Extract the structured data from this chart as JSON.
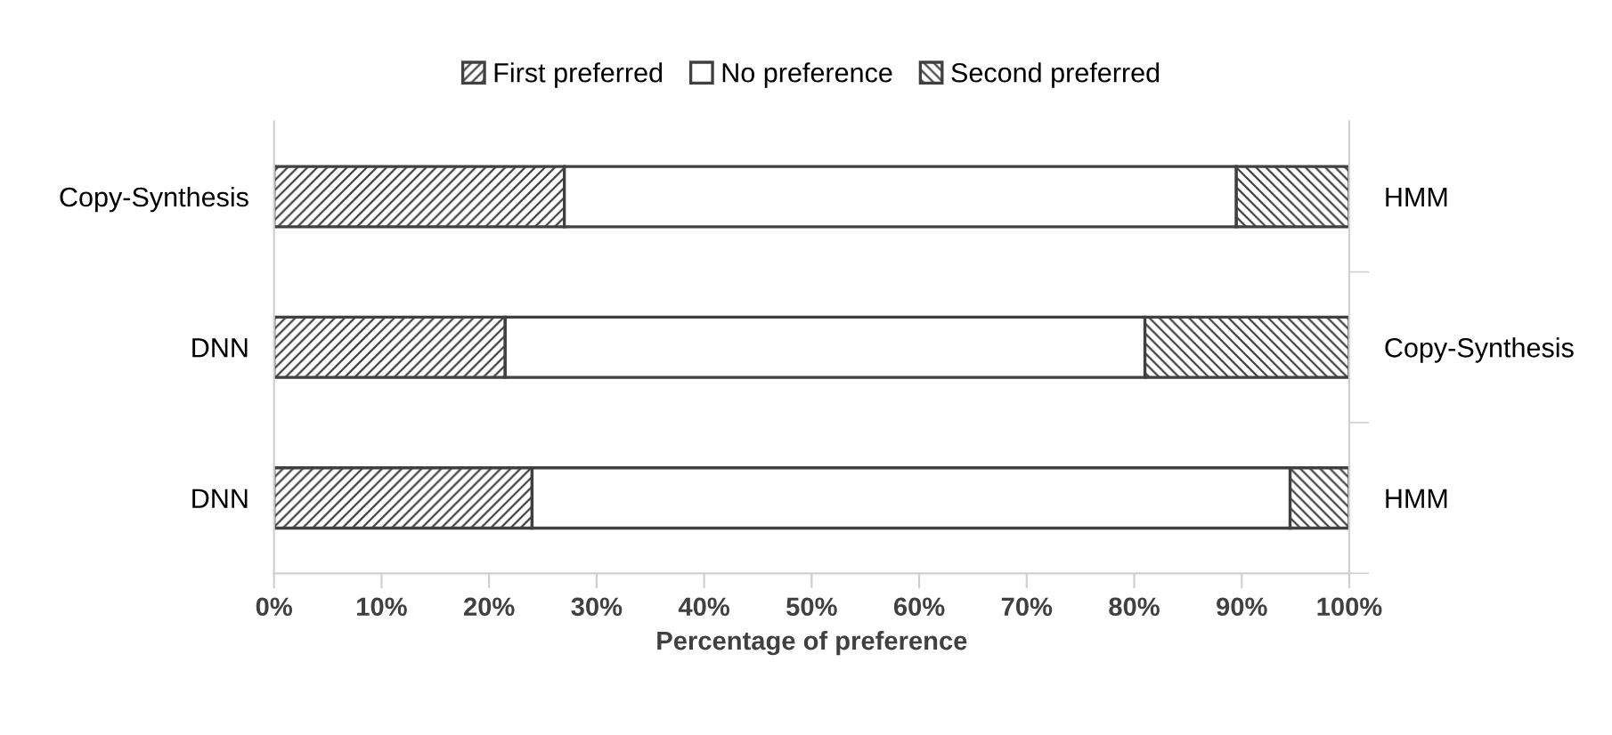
{
  "chart_data": {
    "type": "bar",
    "orientation": "horizontal",
    "stacked": true,
    "categories": [
      "Copy-Synthesis",
      "DNN",
      "DNN"
    ],
    "y2_categories": [
      "HMM",
      "Copy-Synthesis",
      "HMM"
    ],
    "xlabel": "Percentage of preference",
    "series": [
      {
        "name": "First preferred",
        "color": "#404040",
        "values": [
          27,
          21.5,
          24
        ]
      },
      {
        "name": "No preference",
        "color": "#ffffff",
        "values": [
          62.5,
          59.5,
          70.5
        ]
      },
      {
        "name": "Second preferred",
        "color": "#404040",
        "values": [
          10.5,
          19,
          5.5
        ]
      }
    ],
    "xlim": [
      0,
      100
    ],
    "xticks": [
      {
        "value": 0,
        "label": "0%"
      },
      {
        "value": 10,
        "label": "10%"
      },
      {
        "value": 20,
        "label": "20%"
      },
      {
        "value": 30,
        "label": "30%"
      },
      {
        "value": 40,
        "label": "40%"
      },
      {
        "value": 50,
        "label": "50%"
      },
      {
        "value": 60,
        "label": "60%"
      },
      {
        "value": 70,
        "label": "70%"
      },
      {
        "value": 80,
        "label": "80%"
      },
      {
        "value": 90,
        "label": "90%"
      },
      {
        "value": 100,
        "label": "100%"
      }
    ],
    "grid": false,
    "legend": "top"
  }
}
